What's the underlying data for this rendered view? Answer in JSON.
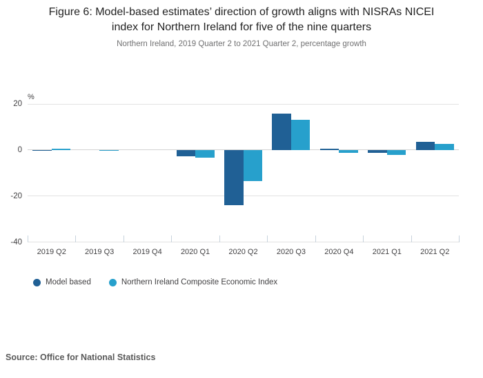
{
  "header": {
    "title": "Figure 6: Model-based estimates’ direction of growth aligns with NISRAs NICEI index for Northern Ireland for five of the nine quarters",
    "subtitle": "Northern Ireland, 2019 Quarter 2 to 2021 Quarter 2, percentage growth"
  },
  "chart_data": {
    "type": "bar",
    "title": "Figure 6: Model-based estimates’ direction of growth aligns with NISRAs NICEI index for Northern Ireland for five of the nine quarters",
    "subtitle": "Northern Ireland, 2019 Quarter 2 to 2021 Quarter 2, percentage growth",
    "unit_label": "%",
    "categories": [
      "2019 Q2",
      "2019 Q3",
      "2019 Q4",
      "2020 Q1",
      "2020 Q2",
      "2020 Q3",
      "2020 Q4",
      "2021 Q1",
      "2021 Q2"
    ],
    "series": [
      {
        "name": "Model based",
        "color": "#206095",
        "values": [
          -0.4,
          0.0,
          0.0,
          -2.8,
          -24.1,
          15.8,
          0.4,
          -1.2,
          3.5
        ]
      },
      {
        "name": "Northern Ireland Composite Economic Index",
        "color": "#27a0cc",
        "values": [
          0.4,
          -0.4,
          0.0,
          -3.2,
          -13.5,
          13.0,
          -1.3,
          -2.0,
          2.7
        ]
      }
    ],
    "ylim": [
      -40,
      20
    ],
    "yticks": [
      20,
      0,
      -20,
      -40
    ],
    "grid": true,
    "legend_position": "bottom"
  },
  "source": {
    "text": "Source: Office for National Statistics"
  },
  "colors": {
    "model_based": "#206095",
    "nicei": "#27a0cc",
    "gridline": "#e2e2e2",
    "axis_text": "#414042"
  }
}
